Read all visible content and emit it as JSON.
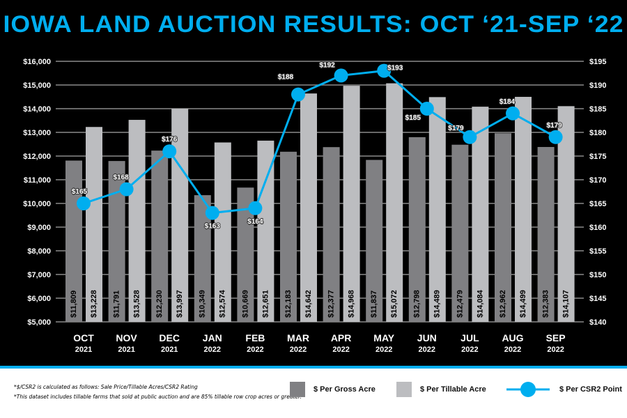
{
  "title": "IOWA LAND AUCTION RESULTS: OCT ‘21-SEP ‘22",
  "colors": {
    "background": "#000000",
    "accent": "#00aeef",
    "gross": "#808083",
    "tillable": "#bcbdc0"
  },
  "notes": [
    "*$/CSR2 is calculated as follows: Sale Price/Tillable Acres/CSR2 Rating",
    "*This dataset includes tillable farms that sold at public auction and are 85% tillable row crop acres or greater."
  ],
  "chart_data": {
    "type": "bar",
    "title": "IOWA LAND AUCTION RESULTS: OCT ‘21-SEP ‘22",
    "categories": [
      [
        "OCT",
        "2021"
      ],
      [
        "NOV",
        "2021"
      ],
      [
        "DEC",
        "2021"
      ],
      [
        "JAN",
        "2022"
      ],
      [
        "FEB",
        "2022"
      ],
      [
        "MAR",
        "2022"
      ],
      [
        "APR",
        "2022"
      ],
      [
        "MAY",
        "2022"
      ],
      [
        "JUN",
        "2022"
      ],
      [
        "JUL",
        "2022"
      ],
      [
        "AUG",
        "2022"
      ],
      [
        "SEP",
        "2022"
      ]
    ],
    "ylim": [
      5000,
      16000
    ],
    "y2lim": [
      140,
      195
    ],
    "yticks": [
      "$5,000",
      "$6,000",
      "$7,000",
      "$8,000",
      "$9,000",
      "$10,000",
      "$11,000",
      "$12,000",
      "$13,000",
      "$14,000",
      "$15,000",
      "$16,000"
    ],
    "y2ticks": [
      "$140",
      "$145",
      "$150",
      "$155",
      "$160",
      "$165",
      "$170",
      "$175",
      "$180",
      "$185",
      "$190",
      "$195"
    ],
    "grid": true,
    "legend": "bottom",
    "series": [
      {
        "name": "$ Per Gross Acre",
        "type": "bar",
        "axis": "left",
        "values": [
          11809,
          11791,
          12230,
          10349,
          10669,
          12183,
          12377,
          11837,
          12798,
          12479,
          12962,
          12383
        ],
        "labels": [
          "$11,809",
          "$11,791",
          "$12,230",
          "$10,349",
          "$10,669",
          "$12,183",
          "$12,377",
          "$11,837",
          "$12,798",
          "$12,479",
          "$12,962",
          "$12,383"
        ]
      },
      {
        "name": "$ Per Tillable Acre",
        "type": "bar",
        "axis": "left",
        "values": [
          13228,
          13528,
          13997,
          12574,
          12651,
          14642,
          14968,
          15072,
          14489,
          14084,
          14499,
          14107
        ],
        "labels": [
          "$13,228",
          "$13,528",
          "$13,997",
          "$12,574",
          "$12,651",
          "$14,642",
          "$14,968",
          "$15,072",
          "$14,489",
          "$14,084",
          "$14,499",
          "$14,107"
        ]
      },
      {
        "name": "$ Per CSR2 Point",
        "type": "line",
        "axis": "right",
        "values": [
          165,
          168,
          176,
          163,
          164,
          188,
          192,
          193,
          185,
          179,
          184,
          179
        ],
        "labels": [
          "$165",
          "$168",
          "$176",
          "$163",
          "$164",
          "$188",
          "$192",
          "$193",
          "$185",
          "$179",
          "$184",
          "$179"
        ]
      }
    ]
  }
}
